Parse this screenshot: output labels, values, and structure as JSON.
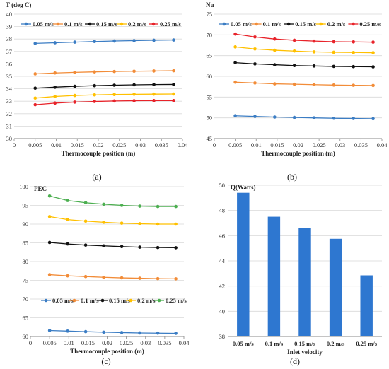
{
  "chart_data": [
    {
      "type": "line",
      "ylabel": "T (deg C)",
      "xlabel": "Thermocouple position (m)",
      "caption": "(a)",
      "x": [
        0.005,
        0.0097,
        0.0144,
        0.0191,
        0.0238,
        0.0285,
        0.0332,
        0.0379
      ],
      "xlim": [
        0,
        0.04
      ],
      "xticks": [
        "0",
        "0.005",
        "0.01",
        "0.015",
        "0.02",
        "0.025",
        "0.03",
        "0.035",
        "0.04"
      ],
      "ylim": [
        30,
        40
      ],
      "yticks": [
        "30",
        "31",
        "32",
        "33",
        "34",
        "35",
        "36",
        "37",
        "38",
        "39",
        "40"
      ],
      "legend": "top",
      "series": [
        {
          "name": "0.05 m/s",
          "color": "#3B7DC4",
          "values": [
            37.65,
            37.7,
            37.75,
            37.8,
            37.84,
            37.87,
            37.9,
            37.92
          ]
        },
        {
          "name": "0.1 m/s",
          "color": "#F28C38",
          "values": [
            35.2,
            35.27,
            35.32,
            35.36,
            35.39,
            35.41,
            35.43,
            35.45
          ]
        },
        {
          "name": "0.15 m/s",
          "color": "#111111",
          "values": [
            34.05,
            34.13,
            34.2,
            34.25,
            34.29,
            34.32,
            34.34,
            34.35
          ]
        },
        {
          "name": "0.2 m/s",
          "color": "#FFC000",
          "values": [
            33.25,
            33.38,
            33.46,
            33.51,
            33.54,
            33.56,
            33.57,
            33.58
          ]
        },
        {
          "name": "0.25 m/s",
          "color": "#E8232A",
          "values": [
            32.72,
            32.85,
            32.93,
            32.98,
            33.02,
            33.04,
            33.05,
            33.05
          ]
        }
      ]
    },
    {
      "type": "line",
      "ylabel": "Nu",
      "xlabel": "Thermocouple position (m)",
      "caption": "(b)",
      "x": [
        0.005,
        0.0097,
        0.0144,
        0.0191,
        0.0238,
        0.0285,
        0.0332,
        0.0379
      ],
      "xlim": [
        0,
        0.04
      ],
      "xticks": [
        "0",
        "0.005",
        "0.01",
        "0.015",
        "0.02",
        "0.025",
        "0.03",
        "0.035",
        "0.04"
      ],
      "ylim": [
        45,
        75
      ],
      "yticks": [
        "45",
        "50",
        "55",
        "60",
        "65",
        "70",
        "75"
      ],
      "legend": "top",
      "series": [
        {
          "name": "0.05 m/s",
          "color": "#3B7DC4",
          "values": [
            50.5,
            50.35,
            50.2,
            50.1,
            50.0,
            49.9,
            49.85,
            49.8
          ]
        },
        {
          "name": "0.1 m/s",
          "color": "#F28C38",
          "values": [
            58.6,
            58.4,
            58.2,
            58.1,
            58.0,
            57.9,
            57.85,
            57.8
          ]
        },
        {
          "name": "0.15 m/s",
          "color": "#111111",
          "values": [
            63.3,
            63.0,
            62.8,
            62.6,
            62.5,
            62.4,
            62.35,
            62.3
          ]
        },
        {
          "name": "0.2 m/s",
          "color": "#FFC000",
          "values": [
            67.1,
            66.6,
            66.3,
            66.1,
            65.9,
            65.8,
            65.75,
            65.7
          ]
        },
        {
          "name": "0.25 m/s",
          "color": "#E8232A",
          "values": [
            70.2,
            69.5,
            69.0,
            68.7,
            68.5,
            68.35,
            68.3,
            68.25
          ]
        }
      ]
    },
    {
      "type": "line",
      "ylabel": "PEC",
      "xlabel": "Thermocouple position (m)",
      "caption": "(c)",
      "x": [
        0.005,
        0.0097,
        0.0144,
        0.0191,
        0.0238,
        0.0285,
        0.0332,
        0.0379
      ],
      "xlim": [
        0,
        0.04
      ],
      "xticks": [
        "0",
        "0.005",
        "0.01",
        "0.015",
        "0.02",
        "0.025",
        "0.03",
        "0.035",
        "0.04"
      ],
      "ylim": [
        60,
        100
      ],
      "yticks": [
        "60",
        "65",
        "70",
        "75",
        "80",
        "85",
        "90",
        "95",
        "100"
      ],
      "legend": "bottom",
      "series": [
        {
          "name": "0.05 m/s",
          "color": "#3B7DC4",
          "values": [
            61.6,
            61.45,
            61.3,
            61.15,
            61.05,
            60.95,
            60.9,
            60.85
          ]
        },
        {
          "name": "0.1 m/s",
          "color": "#F28C38",
          "values": [
            76.5,
            76.2,
            76.0,
            75.8,
            75.65,
            75.55,
            75.45,
            75.4
          ]
        },
        {
          "name": "0.15 m/s",
          "color": "#111111",
          "values": [
            85.1,
            84.7,
            84.4,
            84.2,
            84.0,
            83.85,
            83.75,
            83.7
          ]
        },
        {
          "name": "0.2 m/s",
          "color": "#FFC000",
          "values": [
            92.0,
            91.2,
            90.8,
            90.5,
            90.25,
            90.1,
            90.0,
            90.0
          ]
        },
        {
          "name": "0.25 m/s",
          "color": "#4CAF50",
          "values": [
            97.5,
            96.3,
            95.7,
            95.3,
            95.0,
            94.8,
            94.7,
            94.7
          ]
        }
      ]
    },
    {
      "type": "bar",
      "ylabel": "Q(Watts)",
      "xlabel": "Inlet velocity",
      "caption": "(d)",
      "categories": [
        "0.05 m/s",
        "0.1 m/s",
        "0.15 m/s",
        "0.2 m/s",
        "0.25 m/s"
      ],
      "values": [
        49.4,
        47.5,
        46.6,
        45.75,
        42.85
      ],
      "color": "#2E77D0",
      "ylim": [
        38,
        50
      ],
      "yticks": [
        "38",
        "40",
        "42",
        "44",
        "46",
        "48",
        "50"
      ]
    }
  ]
}
